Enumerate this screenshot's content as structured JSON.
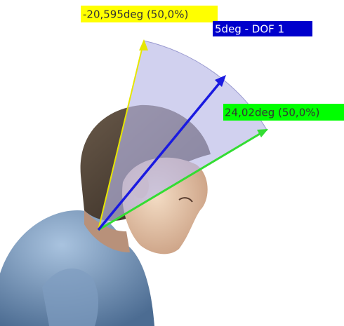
{
  "labels": {
    "lower_limit": "-20,595deg  (50,0%)",
    "current": "5deg - DOF 1",
    "upper_limit": "24,02deg  (50,0%)"
  }
}
